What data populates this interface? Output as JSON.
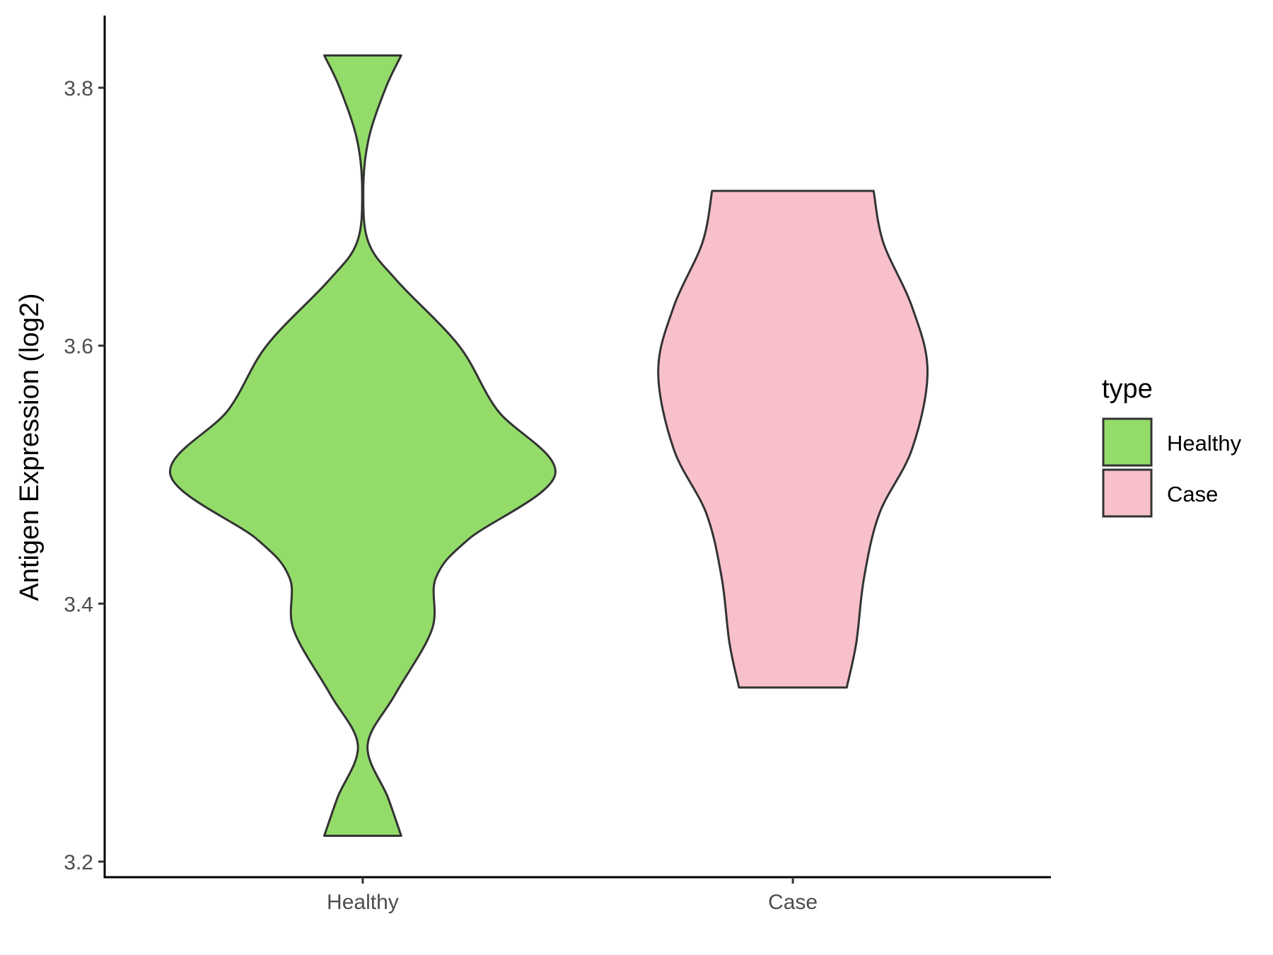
{
  "chart_data": {
    "type": "violin",
    "title": "",
    "xlabel": "",
    "ylabel": "Antigen Expression (log2)",
    "categories": [
      "Healthy",
      "Case"
    ],
    "yticks": [
      3.2,
      3.4,
      3.6,
      3.8
    ],
    "ylim": [
      3.19,
      3.85
    ],
    "grid": false,
    "legend": {
      "title": "type",
      "position": "right",
      "entries": [
        {
          "label": "Healthy",
          "color": "#93DC6A"
        },
        {
          "label": "Case",
          "color": "#F8C0CB"
        }
      ]
    },
    "series": [
      {
        "category": "Healthy",
        "color": "#93DC6A",
        "min": 3.22,
        "max": 3.825,
        "density": [
          [
            3.22,
            0.2
          ],
          [
            3.25,
            0.13
          ],
          [
            3.29,
            0.025
          ],
          [
            3.33,
            0.17
          ],
          [
            3.38,
            0.36
          ],
          [
            3.42,
            0.38
          ],
          [
            3.45,
            0.55
          ],
          [
            3.5,
            1.0
          ],
          [
            3.55,
            0.7
          ],
          [
            3.6,
            0.5
          ],
          [
            3.65,
            0.18
          ],
          [
            3.68,
            0.03
          ],
          [
            3.72,
            0.003
          ],
          [
            3.76,
            0.03
          ],
          [
            3.8,
            0.12
          ],
          [
            3.825,
            0.2
          ]
        ]
      },
      {
        "category": "Case",
        "color": "#F8C0CB",
        "min": 3.335,
        "max": 3.72,
        "density": [
          [
            3.335,
            0.28
          ],
          [
            3.37,
            0.33
          ],
          [
            3.42,
            0.37
          ],
          [
            3.47,
            0.45
          ],
          [
            3.52,
            0.62
          ],
          [
            3.58,
            0.7
          ],
          [
            3.63,
            0.62
          ],
          [
            3.68,
            0.47
          ],
          [
            3.72,
            0.42
          ]
        ]
      }
    ]
  }
}
